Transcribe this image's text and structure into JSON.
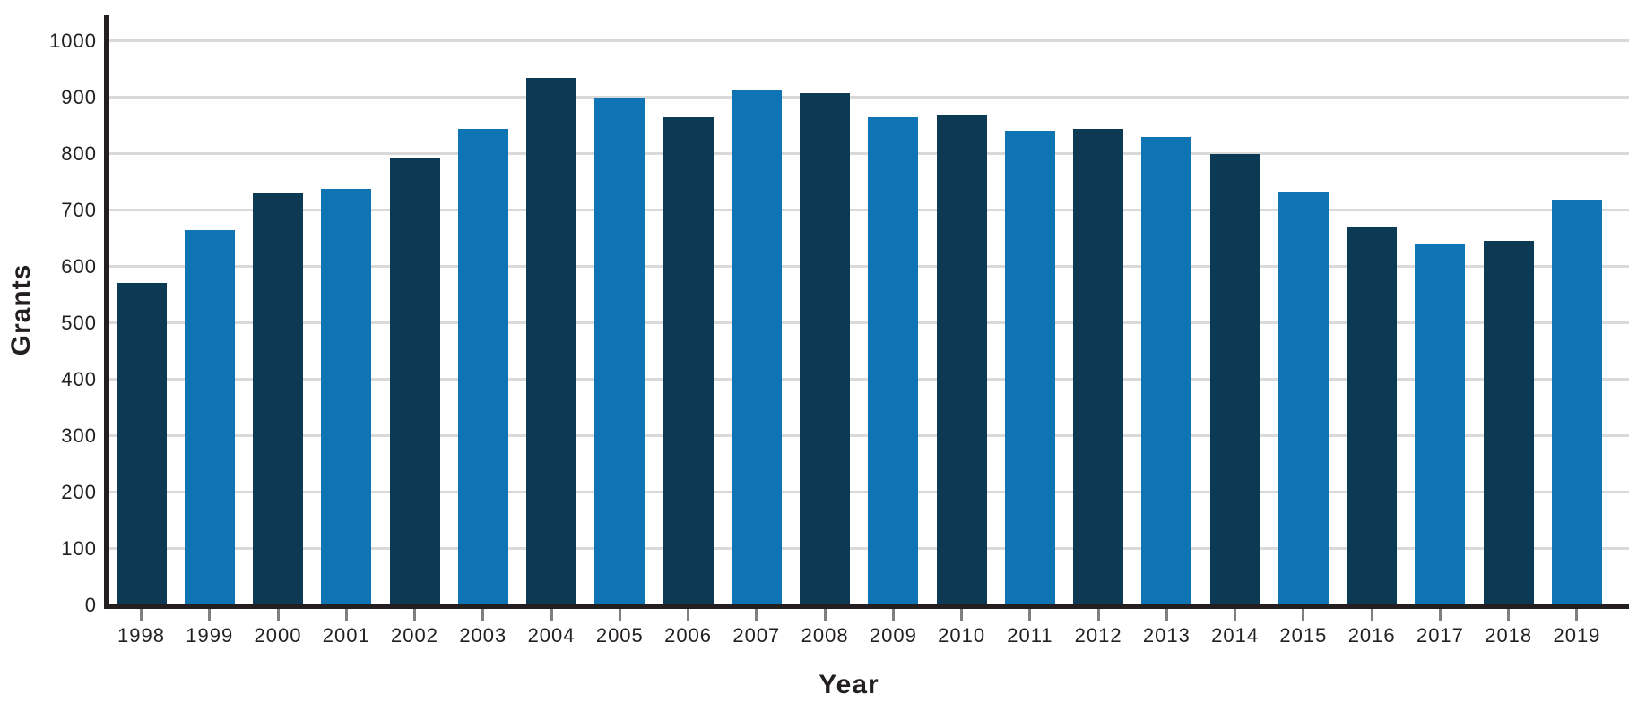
{
  "chart_data": {
    "type": "bar",
    "title": "",
    "xlabel": "Year",
    "ylabel": "Grants",
    "categories": [
      "1998",
      "1999",
      "2000",
      "2001",
      "2002",
      "2003",
      "2004",
      "2005",
      "2006",
      "2007",
      "2008",
      "2009",
      "2010",
      "2011",
      "2012",
      "2013",
      "2014",
      "2015",
      "2016",
      "2017",
      "2018",
      "2019"
    ],
    "values": [
      571,
      664,
      730,
      738,
      791,
      844,
      934,
      900,
      864,
      914,
      907,
      864,
      869,
      841,
      844,
      830,
      800,
      732,
      669,
      640,
      646,
      718
    ],
    "yticks": [
      0,
      100,
      200,
      300,
      400,
      500,
      600,
      700,
      800,
      900,
      1000
    ],
    "ylim": [
      0,
      1045
    ],
    "grid": "horizontal",
    "legend": "none",
    "bar_color_rule": "alternating: even-index years dark, odd-index years light, starting dark at 1998",
    "colors": {
      "bar_dark": "#0c3a54",
      "bar_light": "#0e74b4",
      "axis": "#231f20",
      "gridline": "#d9d9d9",
      "tick_mark": "#7f7f7f",
      "label_text": "#231f20",
      "background": "#ffffff"
    }
  }
}
